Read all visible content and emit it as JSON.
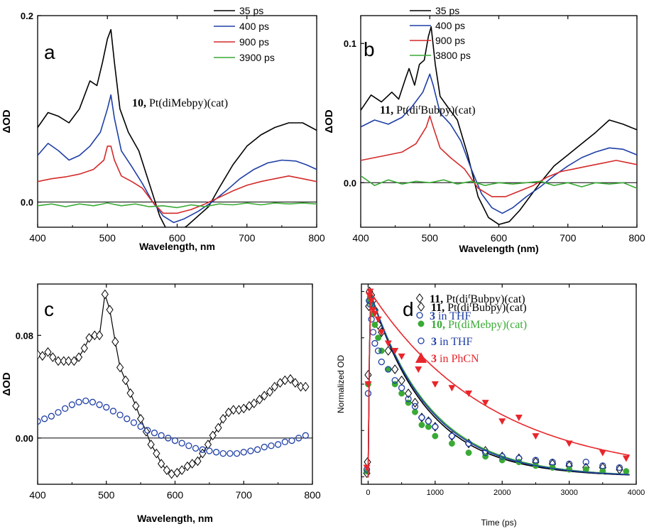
{
  "chart_data": [
    {
      "panel_label": "a",
      "type": "line",
      "xlabel": "Wavelength, nm",
      "ylabel": "ΔOD",
      "xlim": [
        400,
        800
      ],
      "ylim": [
        -0.027,
        0.2
      ],
      "xticks": [
        400,
        500,
        600,
        700,
        800
      ],
      "yticks": [
        0.0,
        0.2
      ],
      "ytick_labels": [
        "0.0",
        "0.2"
      ],
      "zero_line": true,
      "legend_position": "top-right",
      "annotation": {
        "bold": "10,",
        "rest": " Pt(diMebpy)(cat)"
      },
      "series": [
        {
          "name": "35 ps",
          "color": "#000000",
          "x": [
            400,
            415,
            430,
            445,
            460,
            475,
            485,
            493,
            500,
            505,
            510,
            518,
            530,
            545,
            560,
            575,
            590,
            600,
            615,
            630,
            645,
            660,
            680,
            700,
            720,
            740,
            760,
            780,
            800
          ],
          "y": [
            0.08,
            0.096,
            0.092,
            0.085,
            0.1,
            0.13,
            0.125,
            0.15,
            0.175,
            0.185,
            0.15,
            0.1,
            0.075,
            0.055,
            0.02,
            -0.015,
            -0.037,
            -0.033,
            -0.025,
            -0.015,
            -0.005,
            0.015,
            0.04,
            0.06,
            0.072,
            0.08,
            0.085,
            0.085,
            0.077
          ]
        },
        {
          "name": "400 ps",
          "color": "#1f3fa6",
          "x": [
            400,
            415,
            430,
            445,
            460,
            475,
            490,
            500,
            505,
            510,
            520,
            535,
            550,
            565,
            580,
            595,
            610,
            630,
            650,
            670,
            690,
            710,
            730,
            750,
            770,
            785,
            800
          ],
          "y": [
            0.05,
            0.063,
            0.055,
            0.045,
            0.05,
            0.06,
            0.075,
            0.1,
            0.115,
            0.09,
            0.055,
            0.038,
            0.02,
            0.0,
            -0.015,
            -0.022,
            -0.018,
            -0.01,
            0.0,
            0.012,
            0.025,
            0.035,
            0.042,
            0.045,
            0.044,
            0.04,
            0.035
          ]
        },
        {
          "name": "900 ps",
          "color": "#d42a2a",
          "x": [
            400,
            420,
            440,
            460,
            480,
            495,
            500,
            505,
            510,
            520,
            535,
            550,
            565,
            580,
            600,
            620,
            640,
            660,
            680,
            700,
            720,
            740,
            760,
            780,
            800
          ],
          "y": [
            0.022,
            0.025,
            0.027,
            0.03,
            0.035,
            0.045,
            0.06,
            0.06,
            0.045,
            0.028,
            0.022,
            0.015,
            0.0,
            -0.012,
            -0.012,
            -0.008,
            -0.002,
            0.005,
            0.012,
            0.018,
            0.022,
            0.025,
            0.028,
            0.025,
            0.022
          ]
        },
        {
          "name": "3900 ps",
          "color": "#3aaa35",
          "x": [
            400,
            420,
            440,
            460,
            480,
            500,
            520,
            540,
            560,
            580,
            600,
            620,
            640,
            660,
            680,
            700,
            720,
            740,
            760,
            780,
            800
          ],
          "y": [
            -0.004,
            -0.002,
            -0.005,
            -0.002,
            -0.004,
            -0.001,
            -0.004,
            -0.002,
            -0.005,
            -0.004,
            -0.006,
            -0.003,
            -0.005,
            -0.002,
            -0.003,
            -0.001,
            -0.003,
            -0.001,
            -0.002,
            -0.001,
            -0.002
          ]
        }
      ]
    },
    {
      "panel_label": "b",
      "type": "line",
      "xlabel": "Wavelength (nm)",
      "ylabel": "ΔOD",
      "xlim": [
        400,
        800
      ],
      "ylim": [
        -0.032,
        0.12
      ],
      "xticks": [
        400,
        500,
        600,
        700,
        800
      ],
      "yticks": [
        0.0,
        0.1
      ],
      "ytick_labels": [
        "0.0",
        "0.1"
      ],
      "zero_line": true,
      "legend_position": "top-right",
      "annotation": {
        "bold": "11,",
        "rest": " Pt(di",
        "italic": "t",
        "rest2": "Bubpy)(cat)"
      },
      "series": [
        {
          "name": "35 ps",
          "color": "#000000",
          "x": [
            400,
            415,
            430,
            445,
            455,
            465,
            470,
            478,
            485,
            492,
            498,
            502,
            508,
            515,
            525,
            540,
            555,
            570,
            585,
            600,
            615,
            630,
            645,
            660,
            680,
            700,
            720,
            740,
            760,
            780,
            800
          ],
          "y": [
            0.052,
            0.063,
            0.058,
            0.065,
            0.06,
            0.075,
            0.082,
            0.07,
            0.085,
            0.088,
            0.105,
            0.112,
            0.085,
            0.062,
            0.055,
            0.045,
            0.02,
            -0.01,
            -0.025,
            -0.03,
            -0.028,
            -0.02,
            -0.01,
            0.0,
            0.012,
            0.02,
            0.028,
            0.036,
            0.045,
            0.042,
            0.038
          ]
        },
        {
          "name": "400 ps",
          "color": "#1f3fa6",
          "x": [
            400,
            420,
            440,
            460,
            475,
            490,
            500,
            505,
            515,
            530,
            545,
            560,
            575,
            590,
            605,
            620,
            640,
            660,
            680,
            700,
            720,
            740,
            760,
            780,
            800
          ],
          "y": [
            0.04,
            0.045,
            0.042,
            0.047,
            0.055,
            0.065,
            0.078,
            0.07,
            0.05,
            0.042,
            0.03,
            0.01,
            -0.008,
            -0.018,
            -0.022,
            -0.018,
            -0.01,
            -0.003,
            0.005,
            0.012,
            0.018,
            0.022,
            0.025,
            0.024,
            0.02
          ]
        },
        {
          "name": "900 ps",
          "color": "#d42a2a",
          "x": [
            400,
            420,
            440,
            460,
            480,
            495,
            500,
            505,
            515,
            530,
            550,
            570,
            590,
            610,
            630,
            650,
            670,
            690,
            710,
            730,
            750,
            770,
            790,
            800
          ],
          "y": [
            0.016,
            0.018,
            0.02,
            0.022,
            0.028,
            0.04,
            0.048,
            0.04,
            0.025,
            0.018,
            0.01,
            -0.004,
            -0.01,
            -0.01,
            -0.006,
            -0.002,
            0.004,
            0.008,
            0.01,
            0.012,
            0.014,
            0.016,
            0.014,
            0.013
          ]
        },
        {
          "name": "3800 ps",
          "color": "#3aaa35",
          "x": [
            400,
            420,
            440,
            460,
            480,
            500,
            520,
            540,
            560,
            580,
            600,
            620,
            640,
            660,
            680,
            700,
            720,
            740,
            760,
            780,
            800
          ],
          "y": [
            0.005,
            -0.002,
            0.002,
            -0.001,
            0.001,
            0.0,
            0.002,
            -0.001,
            0.001,
            -0.002,
            0.0,
            -0.001,
            0.0,
            0.001,
            -0.002,
            0.0,
            -0.003,
            0.0,
            -0.001,
            0.0,
            -0.004
          ]
        }
      ]
    },
    {
      "panel_label": "c",
      "type": "line",
      "xlabel": "Wavelength, nm",
      "ylabel": "ΔOD",
      "xlim": [
        400,
        800
      ],
      "ylim": [
        -0.036,
        0.12
      ],
      "xticks": [
        400,
        500,
        600,
        700,
        800
      ],
      "yticks": [
        0.0,
        0.08
      ],
      "ytick_labels": [
        "0.00",
        "0.08"
      ],
      "zero_line": true,
      "legend_position": "top-right",
      "series": [
        {
          "name_bold": "11,",
          "name_rest": " Pt(di",
          "name_italic": "t",
          "name_rest2": "Bubpy)(cat)",
          "marker": "diamond",
          "color": "#000000",
          "x": [
            400,
            407,
            415,
            422,
            430,
            438,
            445,
            453,
            460,
            468,
            475,
            483,
            490,
            498,
            505,
            513,
            520,
            528,
            535,
            543,
            550,
            558,
            565,
            573,
            580,
            588,
            595,
            603,
            610,
            618,
            625,
            633,
            640,
            648,
            655,
            663,
            670,
            678,
            685,
            693,
            700,
            708,
            715,
            723,
            730,
            738,
            745,
            753,
            760,
            768,
            775,
            783,
            790
          ],
          "y": [
            0.065,
            0.064,
            0.067,
            0.063,
            0.06,
            0.06,
            0.06,
            0.06,
            0.063,
            0.07,
            0.078,
            0.08,
            0.08,
            0.112,
            0.1,
            0.075,
            0.055,
            0.045,
            0.035,
            0.025,
            0.015,
            0.005,
            -0.005,
            -0.012,
            -0.02,
            -0.025,
            -0.028,
            -0.027,
            -0.025,
            -0.022,
            -0.02,
            -0.018,
            -0.012,
            -0.005,
            0.002,
            0.008,
            0.015,
            0.02,
            0.022,
            0.022,
            0.023,
            0.025,
            0.027,
            0.03,
            0.033,
            0.036,
            0.04,
            0.043,
            0.045,
            0.046,
            0.043,
            0.04,
            0.04
          ]
        },
        {
          "name_bold": "3",
          "name_rest": "  in THF",
          "marker": "circle-open",
          "color": "#1f3fa6",
          "x": [
            400,
            410,
            420,
            430,
            440,
            450,
            460,
            470,
            480,
            490,
            500,
            510,
            520,
            530,
            540,
            550,
            560,
            570,
            580,
            590,
            600,
            610,
            620,
            630,
            640,
            650,
            660,
            670,
            680,
            690,
            700,
            710,
            720,
            730,
            740,
            750,
            760,
            770,
            780,
            790
          ],
          "y": [
            0.013,
            0.015,
            0.017,
            0.02,
            0.023,
            0.026,
            0.028,
            0.029,
            0.028,
            0.026,
            0.024,
            0.021,
            0.018,
            0.015,
            0.012,
            0.009,
            0.006,
            0.004,
            0.002,
            0.0,
            -0.002,
            -0.004,
            -0.006,
            -0.008,
            -0.009,
            -0.01,
            -0.011,
            -0.012,
            -0.012,
            -0.012,
            -0.011,
            -0.01,
            -0.009,
            -0.007,
            -0.006,
            -0.005,
            -0.003,
            -0.002,
            0.0,
            0.002
          ]
        }
      ]
    },
    {
      "panel_label": "d",
      "type": "scatter",
      "xlabel": "Time (ps)",
      "ylabel": "Normalized OD",
      "xlim": [
        -100,
        4000
      ],
      "ylim": [
        -0.04,
        1.04
      ],
      "xticks": [
        0,
        1000,
        2000,
        3000,
        4000
      ],
      "y_tick_labels_shown": false,
      "legend_position": "top-right",
      "series": [
        {
          "name_bold": "11,",
          "name_rest": " Pt(di",
          "name_italic": "t",
          "name_rest2": "Bubpy)(cat)",
          "marker": "diamond",
          "color": "#000000",
          "fit_color": "#000000",
          "fit_tau": 850,
          "x": [
            -20,
            -10,
            0,
            10,
            20,
            35,
            50,
            70,
            100,
            150,
            200,
            300,
            400,
            500,
            600,
            700,
            800,
            900,
            1000,
            1250,
            1500,
            1750,
            2000,
            2250,
            2500,
            2750,
            3000,
            3250,
            3500,
            3750
          ],
          "y": [
            0.02,
            0.08,
            0.55,
            0.92,
            1.0,
            0.97,
            0.98,
            0.95,
            0.9,
            0.82,
            0.78,
            0.68,
            0.58,
            0.52,
            0.45,
            0.4,
            0.32,
            0.3,
            0.27,
            0.22,
            0.18,
            0.14,
            0.11,
            0.1,
            0.08,
            0.07,
            0.06,
            0.05,
            0.05,
            0.04
          ]
        },
        {
          "name_bold": "10,",
          "name_rest": " Pt(diMebpy)(cat)",
          "marker": "circle-filled",
          "color": "#3aaa35",
          "fit_color": "#3aaa35",
          "fit_tau": 900,
          "x": [
            -20,
            0,
            15,
            30,
            50,
            75,
            100,
            150,
            200,
            300,
            400,
            500,
            600,
            700,
            800,
            900,
            1000,
            1250,
            1500,
            1750,
            2000,
            2250,
            2500,
            2750,
            3000,
            3250,
            3500,
            3850
          ],
          "y": [
            0.03,
            0.5,
            0.95,
            0.97,
            0.93,
            0.88,
            0.82,
            0.75,
            0.68,
            0.58,
            0.5,
            0.45,
            0.4,
            0.35,
            0.28,
            0.27,
            0.22,
            0.18,
            0.13,
            0.11,
            0.09,
            0.08,
            0.06,
            0.05,
            0.04,
            0.04,
            0.03,
            0.03
          ]
        },
        {
          "name_bold": "3",
          "name_rest": " in THF",
          "marker": "circle-open",
          "color": "#1f3fa6",
          "fit_color": "#1f3fa6",
          "fit_tau": 880,
          "x": [
            -20,
            0,
            15,
            30,
            50,
            75,
            100,
            150,
            200,
            300,
            400,
            500,
            600,
            700,
            800,
            900,
            1000,
            1250,
            1500,
            1750,
            2000,
            2250,
            2500,
            2750,
            3000,
            3250,
            3500,
            3750
          ],
          "y": [
            0.04,
            0.45,
            0.95,
            0.93,
            0.85,
            0.78,
            0.72,
            0.68,
            0.62,
            0.58,
            0.52,
            0.48,
            0.42,
            0.38,
            0.32,
            0.3,
            0.27,
            0.22,
            0.18,
            0.13,
            0.11,
            0.1,
            0.09,
            0.08,
            0.07,
            0.08,
            0.06,
            0.05
          ]
        },
        {
          "name_bold": "3",
          "name_rest": " in PhCN",
          "marker": "triangle",
          "color": "#e8262b",
          "fit_color": "#e8262b",
          "fit_tau": 1800,
          "x": [
            -20,
            0,
            15,
            30,
            50,
            75,
            100,
            150,
            200,
            300,
            400,
            500,
            750,
            1000,
            1250,
            1500,
            1750,
            2000,
            2250,
            2500,
            3000,
            3500,
            3850
          ],
          "y": [
            0.05,
            0.5,
            0.98,
            1.0,
            0.95,
            0.9,
            0.88,
            0.85,
            0.78,
            0.72,
            0.68,
            0.65,
            0.58,
            0.5,
            0.48,
            0.45,
            0.4,
            0.3,
            0.32,
            0.22,
            0.18,
            0.13,
            0.1
          ]
        }
      ]
    }
  ]
}
